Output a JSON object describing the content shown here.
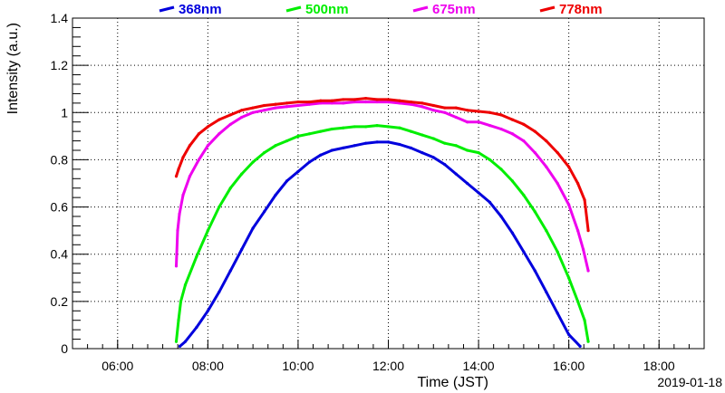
{
  "chart_data": {
    "type": "scatter",
    "xlabel": "Time (JST)",
    "ylabel": "Intensity (a.u.)",
    "date_label": "2019-01-18",
    "xlim": [
      5.0,
      19.0
    ],
    "ylim": [
      0,
      1.4
    ],
    "grid": true,
    "legend_position": "top",
    "x_ticks": [
      6,
      8,
      10,
      12,
      14,
      16,
      18
    ],
    "x_tick_labels": [
      "06:00",
      "08:00",
      "10:00",
      "12:00",
      "14:00",
      "16:00",
      "18:00"
    ],
    "y_ticks": [
      0,
      0.2,
      0.4,
      0.6,
      0.8,
      1.0,
      1.2,
      1.4
    ],
    "y_tick_labels": [
      "0",
      "0.2",
      "0.4",
      "0.6",
      "0.8",
      "1",
      "1.2",
      "1.4"
    ],
    "series": [
      {
        "name": "368nm",
        "color": "#0000dd",
        "x": [
          7.38,
          7.5,
          7.75,
          8.0,
          8.25,
          8.5,
          8.75,
          9.0,
          9.25,
          9.5,
          9.75,
          10.0,
          10.25,
          10.5,
          10.75,
          11.0,
          11.25,
          11.5,
          11.75,
          12.0,
          12.25,
          12.5,
          12.75,
          13.0,
          13.25,
          13.5,
          13.75,
          14.0,
          14.25,
          14.5,
          14.75,
          15.0,
          15.25,
          15.5,
          15.75,
          16.0,
          16.25
        ],
        "y": [
          0.01,
          0.03,
          0.09,
          0.16,
          0.24,
          0.33,
          0.42,
          0.51,
          0.58,
          0.65,
          0.71,
          0.75,
          0.79,
          0.82,
          0.84,
          0.85,
          0.86,
          0.87,
          0.875,
          0.875,
          0.865,
          0.85,
          0.83,
          0.81,
          0.78,
          0.74,
          0.7,
          0.66,
          0.62,
          0.56,
          0.49,
          0.41,
          0.33,
          0.24,
          0.15,
          0.06,
          0.01
        ]
      },
      {
        "name": "500nm",
        "color": "#00ee00",
        "x": [
          7.3,
          7.35,
          7.4,
          7.5,
          7.75,
          8.0,
          8.25,
          8.5,
          8.75,
          9.0,
          9.25,
          9.5,
          9.75,
          10.0,
          10.25,
          10.5,
          10.75,
          11.0,
          11.25,
          11.5,
          11.75,
          12.0,
          12.25,
          12.5,
          12.75,
          13.0,
          13.25,
          13.5,
          13.75,
          14.0,
          14.25,
          14.5,
          14.75,
          15.0,
          15.25,
          15.5,
          15.75,
          16.0,
          16.2,
          16.35,
          16.43
        ],
        "y": [
          0.03,
          0.12,
          0.2,
          0.27,
          0.39,
          0.5,
          0.6,
          0.68,
          0.74,
          0.79,
          0.83,
          0.86,
          0.88,
          0.9,
          0.91,
          0.92,
          0.93,
          0.935,
          0.94,
          0.94,
          0.945,
          0.94,
          0.935,
          0.92,
          0.905,
          0.89,
          0.87,
          0.86,
          0.84,
          0.83,
          0.8,
          0.76,
          0.71,
          0.65,
          0.58,
          0.5,
          0.41,
          0.3,
          0.2,
          0.12,
          0.03
        ]
      },
      {
        "name": "675nm",
        "color": "#ee00ee",
        "x": [
          7.3,
          7.33,
          7.37,
          7.45,
          7.6,
          7.8,
          8.0,
          8.25,
          8.5,
          8.75,
          9.0,
          9.25,
          9.5,
          9.75,
          10.0,
          10.25,
          10.5,
          10.75,
          11.0,
          11.25,
          11.5,
          11.75,
          12.0,
          12.25,
          12.5,
          12.75,
          13.0,
          13.25,
          13.5,
          13.75,
          14.0,
          14.25,
          14.5,
          14.75,
          15.0,
          15.25,
          15.5,
          15.75,
          16.0,
          16.2,
          16.32,
          16.43
        ],
        "y": [
          0.35,
          0.5,
          0.57,
          0.65,
          0.73,
          0.8,
          0.86,
          0.91,
          0.95,
          0.98,
          1.0,
          1.01,
          1.02,
          1.025,
          1.03,
          1.035,
          1.04,
          1.04,
          1.04,
          1.045,
          1.045,
          1.045,
          1.045,
          1.04,
          1.035,
          1.025,
          1.01,
          1.0,
          0.98,
          0.96,
          0.96,
          0.945,
          0.93,
          0.91,
          0.88,
          0.83,
          0.77,
          0.7,
          0.61,
          0.5,
          0.42,
          0.33
        ]
      },
      {
        "name": "778nm",
        "color": "#ee0000",
        "x": [
          7.3,
          7.35,
          7.45,
          7.6,
          7.8,
          8.0,
          8.25,
          8.5,
          8.75,
          9.0,
          9.25,
          9.5,
          9.75,
          10.0,
          10.25,
          10.5,
          10.75,
          11.0,
          11.25,
          11.5,
          11.75,
          12.0,
          12.25,
          12.5,
          12.75,
          13.0,
          13.25,
          13.5,
          13.75,
          14.0,
          14.25,
          14.5,
          14.75,
          15.0,
          15.25,
          15.5,
          15.75,
          16.0,
          16.2,
          16.35,
          16.43
        ],
        "y": [
          0.73,
          0.76,
          0.81,
          0.86,
          0.91,
          0.94,
          0.97,
          0.99,
          1.01,
          1.02,
          1.03,
          1.035,
          1.04,
          1.045,
          1.045,
          1.05,
          1.05,
          1.055,
          1.055,
          1.06,
          1.055,
          1.055,
          1.05,
          1.045,
          1.04,
          1.03,
          1.02,
          1.02,
          1.01,
          1.005,
          1.0,
          0.99,
          0.97,
          0.95,
          0.92,
          0.88,
          0.83,
          0.77,
          0.7,
          0.63,
          0.5
        ]
      }
    ]
  }
}
